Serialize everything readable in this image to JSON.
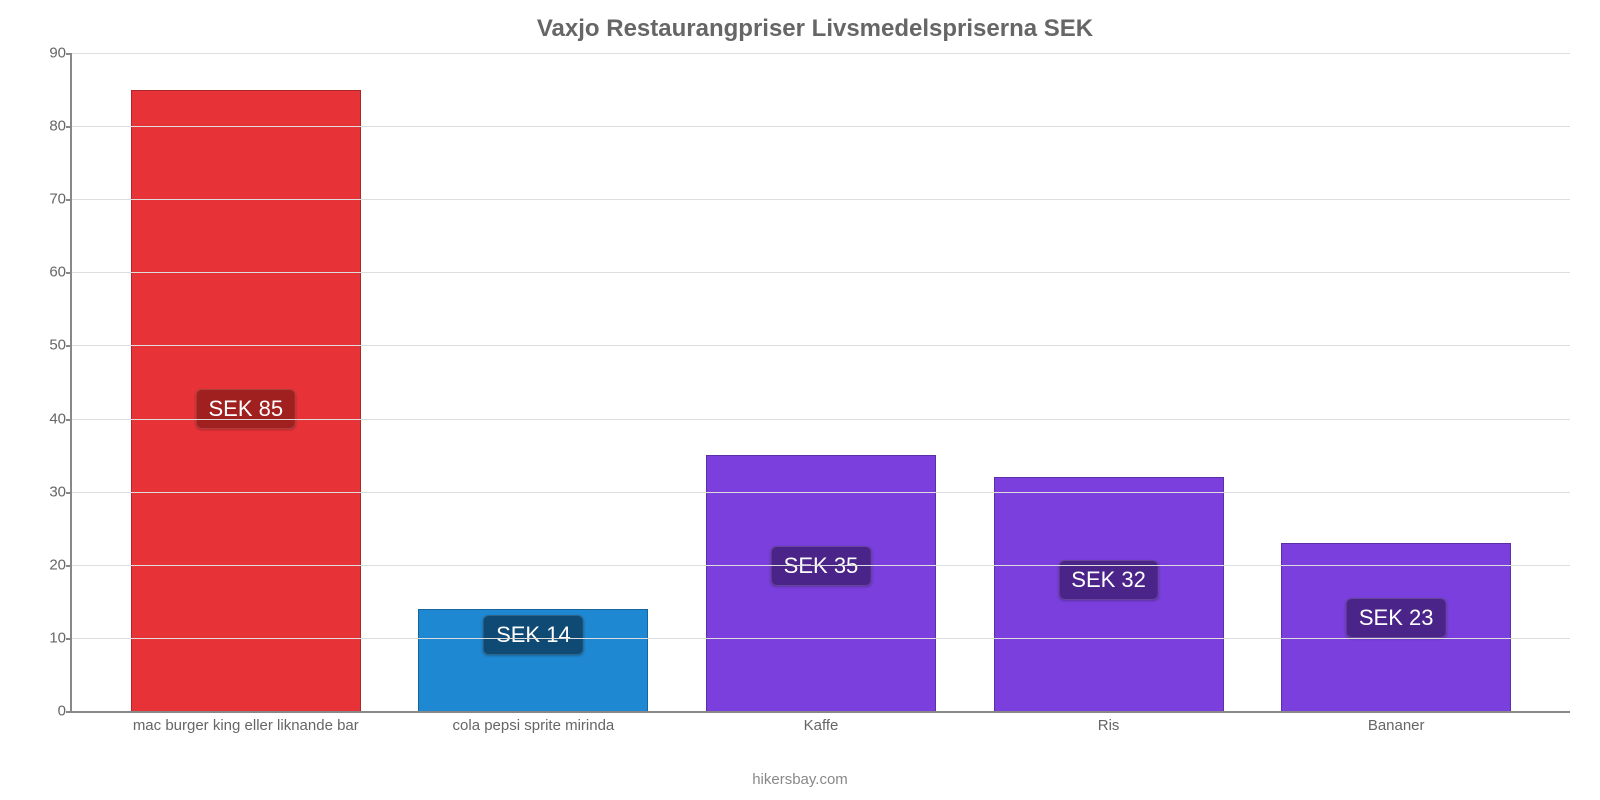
{
  "chart": {
    "type": "bar",
    "title": "Vaxjo Restaurangpriser Livsmedelspriserna SEK",
    "title_fontsize": 24,
    "title_color": "#666666",
    "background_color": "#ffffff",
    "grid_color": "#dddddd",
    "axis_color": "#888888",
    "tick_color": "#666666",
    "tick_fontsize": 15,
    "ylim": [
      0,
      90
    ],
    "ytick_step": 10,
    "yticks": [
      0,
      10,
      20,
      30,
      40,
      50,
      60,
      70,
      80,
      90
    ],
    "bar_width_pct": 80,
    "categories": [
      "mac burger king eller liknande bar",
      "cola pepsi sprite mirinda",
      "Kaffe",
      "Ris",
      "Bananer"
    ],
    "values": [
      85,
      14,
      35,
      32,
      23
    ],
    "value_labels": [
      "SEK 85",
      "SEK 14",
      "SEK 35",
      "SEK 32",
      "SEK 23"
    ],
    "bar_colors": [
      "#e73338",
      "#1e88d2",
      "#7a3fdc",
      "#7a3fdc",
      "#7a3fdc"
    ],
    "badge_colors": [
      "#a01f1f",
      "#0e4a73",
      "#4a2488",
      "#4a2488",
      "#4a2488"
    ],
    "badge_text_color": "#ffffff",
    "badge_fontsize": 22,
    "credit": "hikersbay.com",
    "credit_color": "#888888"
  }
}
